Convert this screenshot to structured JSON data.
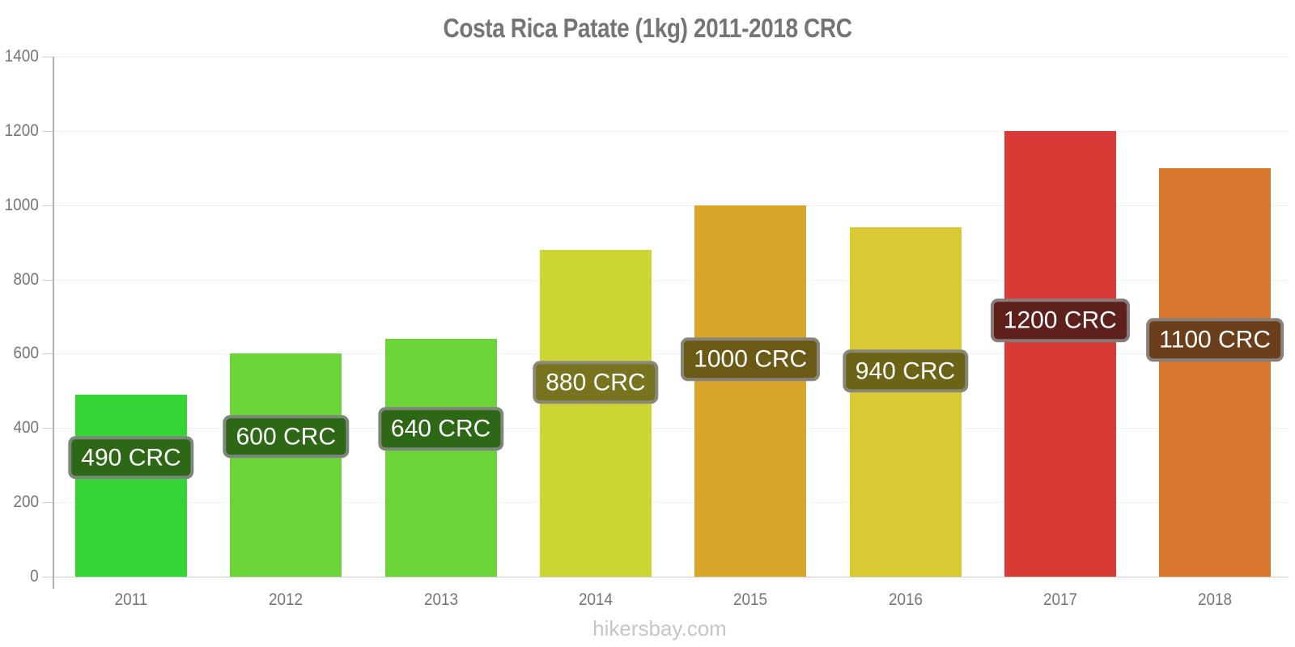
{
  "title": "Costa Rica Patate (1kg) 2011-2018 CRC",
  "footer": "hikersbay.com",
  "chart_data": {
    "type": "bar",
    "title": "Costa Rica Patate (1kg) 2011-2018 CRC",
    "categories": [
      "2011",
      "2012",
      "2013",
      "2014",
      "2015",
      "2016",
      "2017",
      "2018"
    ],
    "values": [
      490,
      600,
      640,
      880,
      1000,
      940,
      1200,
      1100
    ],
    "bar_labels": [
      "490 CRC",
      "600 CRC",
      "640 CRC",
      "880 CRC",
      "1000 CRC",
      "940 CRC",
      "1200 CRC",
      "1100 CRC"
    ],
    "bar_colors": [
      "#33d433",
      "#6ad438",
      "#6ad438",
      "#ccd633",
      "#d9a62b",
      "#d9c933",
      "#d93a36",
      "#d9772e"
    ],
    "badge_colors": [
      "#2c6816",
      "#2c6816",
      "#2c6816",
      "#77731f",
      "#6b5a16",
      "#6b6315",
      "#5e201a",
      "#6b3f1b"
    ],
    "currency": "CRC",
    "xlabel": "",
    "ylabel": "",
    "ylim": [
      0,
      1400
    ],
    "y_ticks": [
      0,
      200,
      400,
      600,
      800,
      1000,
      1200,
      1400
    ],
    "grid": "horizontal-light",
    "legend": "none",
    "axis_text_color": "#757575",
    "watermark": "hikersbay.com"
  }
}
